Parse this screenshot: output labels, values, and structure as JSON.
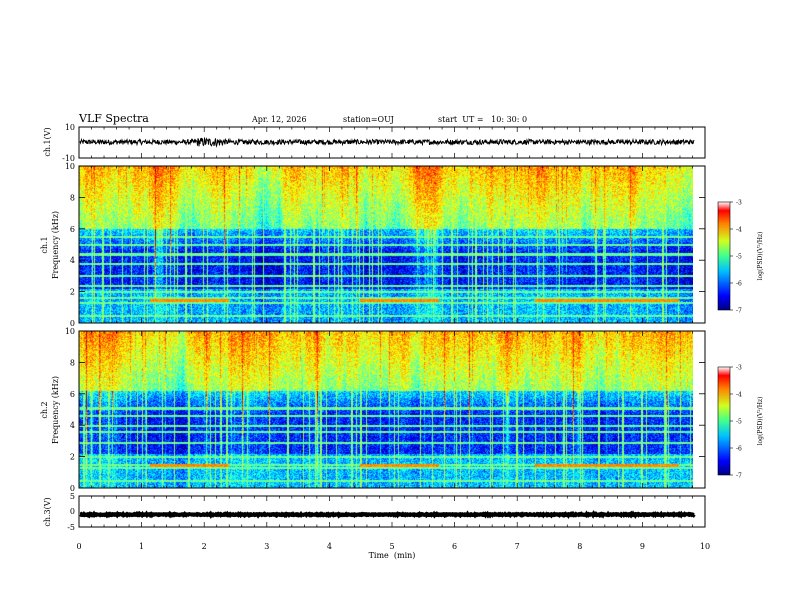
{
  "header": {
    "title": "VLF Spectra",
    "date": "Apr. 12, 2026",
    "station": "station=OUJ",
    "start": "start  UT =   10: 30: 0"
  },
  "chart_data": {
    "type": "spectrogram",
    "xlabel": "Time  (min)",
    "xlim": [
      0,
      10
    ],
    "x_ticks": [
      "0",
      "1",
      "2",
      "3",
      "4",
      "5",
      "6",
      "7",
      "8",
      "9",
      "10"
    ],
    "data_end_min": 9.83,
    "panels": [
      {
        "id": "ch1-waveform",
        "type": "line",
        "ylabel": "ch.1(V)",
        "ylim": [
          -10,
          10
        ],
        "y_ticks": [
          "10",
          "-10"
        ],
        "baseline": 0.3,
        "amplitude": 1.6
      },
      {
        "id": "ch1-spectrogram",
        "type": "heatmap",
        "ylabel": "ch.1",
        "ylabel2": "Frequency (kHz)",
        "ylim": [
          0,
          10
        ],
        "y_ticks": [
          "0",
          "2",
          "4",
          "6",
          "8",
          "10"
        ],
        "colorbar": {
          "label": "log(PSD)(V²/Hz)",
          "range": [
            -7,
            -3
          ],
          "ticks": [
            "-3",
            "-4",
            "-5",
            "-6",
            "-7"
          ]
        },
        "hiss_lower_edge_khz": 6.0,
        "lines_khz": [
          0.5,
          1.3,
          1.6,
          2.0,
          2.4,
          3.0,
          3.8,
          4.4,
          5.0,
          5.5
        ],
        "intensity_level_min": -6.6
      },
      {
        "id": "ch2-spectrogram",
        "type": "heatmap",
        "ylabel": "ch.2",
        "ylabel2": "Frequency (kHz)",
        "ylim": [
          0,
          10
        ],
        "y_ticks": [
          "0",
          "2",
          "4",
          "6",
          "8",
          "10"
        ],
        "colorbar": {
          "label": "log(PSD)(V²/Hz)",
          "range": [
            -7,
            -3
          ],
          "ticks": [
            "-3",
            "-4",
            "-5",
            "-6",
            "-7"
          ]
        },
        "hiss_lower_edge_khz": 6.2,
        "lines_khz": [
          0.5,
          1.3,
          1.5,
          2.0,
          2.9,
          3.6,
          4.0,
          4.6,
          5.1
        ],
        "intensity_level_min": -6.2
      },
      {
        "id": "ch3-waveform",
        "type": "line",
        "ylabel": "ch.3(V)",
        "ylim": [
          -5,
          5
        ],
        "y_ticks": [
          "5",
          "0",
          "-5"
        ],
        "baseline": -1.0,
        "amplitude": 0.15
      }
    ]
  }
}
